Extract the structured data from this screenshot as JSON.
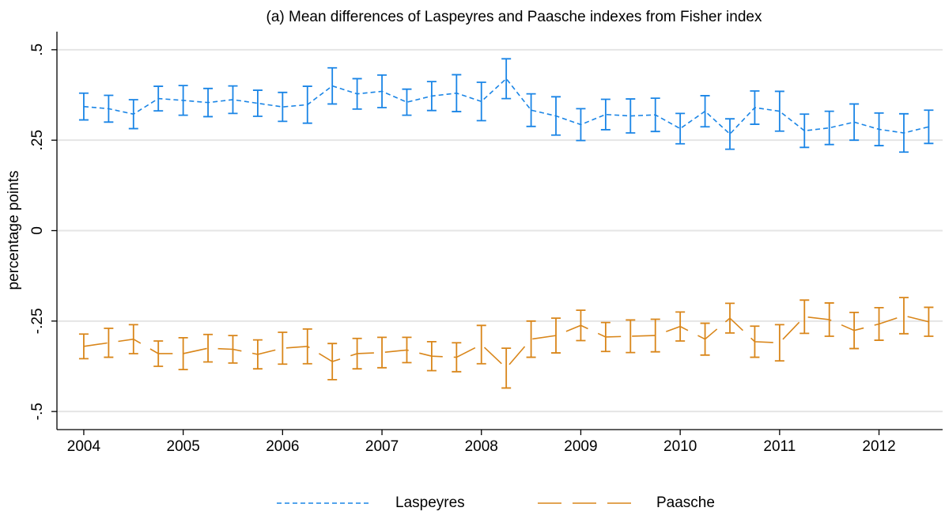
{
  "chart_data": {
    "type": "line",
    "title": "(a) Mean differences of Laspeyres and Paasche indexes from Fisher index",
    "y_label": "percentage points",
    "x": [
      2004,
      2004.25,
      2004.5,
      2004.75,
      2005,
      2005.25,
      2005.5,
      2005.75,
      2006,
      2006.25,
      2006.5,
      2006.75,
      2007,
      2007.25,
      2007.5,
      2007.75,
      2008,
      2008.25,
      2008.5,
      2008.75,
      2009,
      2009.25,
      2009.5,
      2009.75,
      2010,
      2010.25,
      2010.5,
      2010.75,
      2011,
      2011.25,
      2011.5,
      2011.75,
      2012,
      2012.25,
      2012.5
    ],
    "series": [
      {
        "name": "Laspeyres",
        "color": "#1a85e6",
        "dash": "dash",
        "values": [
          0.343,
          0.337,
          0.322,
          0.365,
          0.36,
          0.354,
          0.362,
          0.352,
          0.342,
          0.348,
          0.4,
          0.378,
          0.385,
          0.355,
          0.372,
          0.38,
          0.357,
          0.42,
          0.333,
          0.317,
          0.293,
          0.321,
          0.317,
          0.32,
          0.282,
          0.33,
          0.267,
          0.34,
          0.33,
          0.276,
          0.284,
          0.3,
          0.28,
          0.27,
          0.287
        ],
        "errors": [
          0.037,
          0.037,
          0.04,
          0.034,
          0.041,
          0.039,
          0.038,
          0.036,
          0.04,
          0.051,
          0.05,
          0.042,
          0.045,
          0.036,
          0.04,
          0.051,
          0.053,
          0.055,
          0.045,
          0.053,
          0.044,
          0.042,
          0.047,
          0.046,
          0.042,
          0.043,
          0.042,
          0.046,
          0.055,
          0.046,
          0.046,
          0.05,
          0.045,
          0.053,
          0.046
        ]
      },
      {
        "name": "Paasche",
        "color": "#d9861a",
        "dash": "longdash",
        "values": [
          -0.32,
          -0.31,
          -0.3,
          -0.34,
          -0.34,
          -0.325,
          -0.328,
          -0.342,
          -0.325,
          -0.32,
          -0.362,
          -0.34,
          -0.337,
          -0.33,
          -0.347,
          -0.35,
          -0.315,
          -0.38,
          -0.3,
          -0.29,
          -0.262,
          -0.294,
          -0.292,
          -0.29,
          -0.265,
          -0.3,
          -0.242,
          -0.307,
          -0.31,
          -0.238,
          -0.246,
          -0.276,
          -0.258,
          -0.235,
          -0.252
        ],
        "errors": [
          0.034,
          0.04,
          0.04,
          0.035,
          0.044,
          0.038,
          0.038,
          0.04,
          0.044,
          0.048,
          0.05,
          0.042,
          0.042,
          0.035,
          0.04,
          0.04,
          0.053,
          0.055,
          0.05,
          0.048,
          0.042,
          0.04,
          0.045,
          0.045,
          0.04,
          0.044,
          0.041,
          0.043,
          0.05,
          0.046,
          0.046,
          0.05,
          0.045,
          0.05,
          0.04
        ]
      }
    ],
    "xlim": [
      2003.73,
      2012.64
    ],
    "xticks": [
      2004,
      2005,
      2006,
      2007,
      2008,
      2009,
      2010,
      2011,
      2012
    ],
    "ylim": [
      -0.55,
      0.55
    ],
    "yticks": [
      {
        "value": -0.5,
        "label": "-.5"
      },
      {
        "value": -0.25,
        "label": "-.25"
      },
      0,
      {
        "value": 0.25,
        "label": ".25"
      },
      {
        "value": 0.5,
        "label": ".5"
      }
    ],
    "grid": true,
    "legend": "bottom"
  }
}
